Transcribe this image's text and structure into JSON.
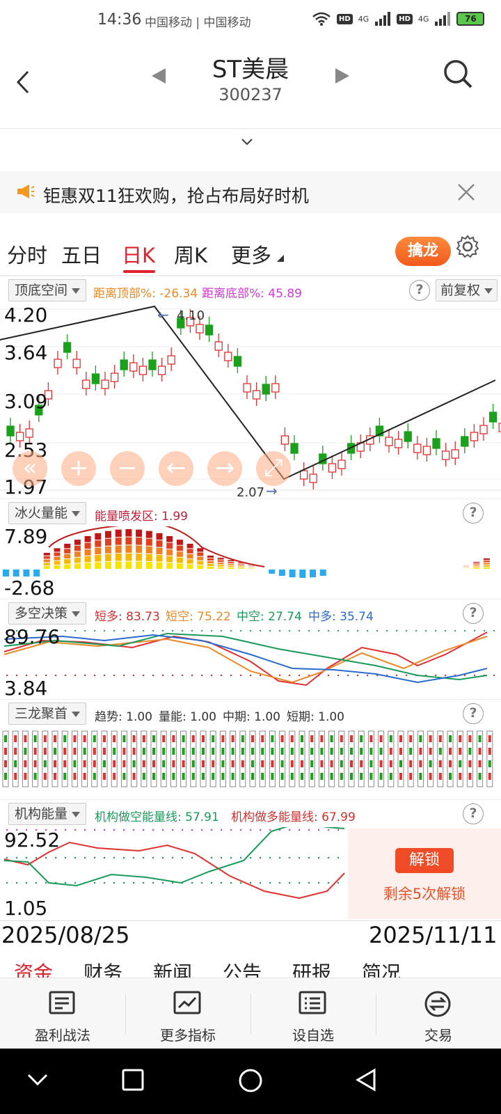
{
  "status": {
    "time": "14:36",
    "carrier": "中国移动 | 中国移动",
    "hd1": "HD",
    "net1": "4G",
    "hd2": "HD",
    "net2": "4G",
    "battery": "76"
  },
  "header": {
    "title": "ST美晨",
    "code": "300237"
  },
  "ad": {
    "text": "钜惠双11狂欢购，抢占布局好时机"
  },
  "tabs": {
    "items": [
      "分时",
      "五日",
      "日K",
      "周K",
      "更多"
    ],
    "active": "日K",
    "qinlong": "擒龙"
  },
  "kline": {
    "indicator_name": "顶底空间",
    "dist_top": "距离顶部%: -26.34",
    "dist_bottom": "距离底部%: 45.89",
    "adjust": "前复权",
    "y_labels": [
      "4.20",
      "3.64",
      "3.09",
      "2.53",
      "1.97"
    ],
    "high_label": "4.10",
    "low_label": "2.07",
    "high_marker": "←",
    "low_marker": "→",
    "color_up": "#e03030",
    "color_down": "#1aa01a"
  },
  "controls": {
    "icons": [
      "double-left-icon",
      "zoom-in-icon",
      "zoom-out-icon",
      "left-arrow-icon",
      "right-arrow-icon",
      "expand-icon"
    ],
    "glyphs": [
      "«",
      "+",
      "−",
      "←",
      "→",
      "⤢"
    ]
  },
  "energy": {
    "indicator_name": "冰火量能",
    "value_text": "能量喷发区: 1.99",
    "y_top": "7.89",
    "y_bottom": "-2.68"
  },
  "duokong": {
    "indicator_name": "多空决策",
    "short_long": "短多: 83.73",
    "short_short": "短空: 75.22",
    "mid_short": "中空: 27.74",
    "mid_long": "中多: 35.74",
    "y_top": "89.76",
    "y_bottom": "3.84"
  },
  "sanlong": {
    "indicator_name": "三龙聚首",
    "trend": "趋势: 1.00",
    "volume": "量能: 1.00",
    "mid": "中期: 1.00",
    "short": "短期: 1.00"
  },
  "jigou": {
    "indicator_name": "机构能量",
    "short_line": "机构做空能量线: 57.91",
    "long_line": "机构做多能量线: 67.99",
    "y_top": "92.52",
    "y_bottom": "1.05",
    "unlock_btn": "解锁",
    "unlock_text": "剩余5次解锁"
  },
  "dates": {
    "start": "2025/08/25",
    "end": "2025/11/11"
  },
  "bottom_tabs": [
    "资金",
    "财务",
    "新闻",
    "公告",
    "研报",
    "简况"
  ],
  "toolbar": [
    {
      "label": "盈利战法",
      "icon": "document-icon"
    },
    {
      "label": "更多指标",
      "icon": "chart-icon"
    },
    {
      "label": "设自选",
      "icon": "list-icon"
    },
    {
      "label": "交易",
      "icon": "exchange-icon"
    }
  ]
}
